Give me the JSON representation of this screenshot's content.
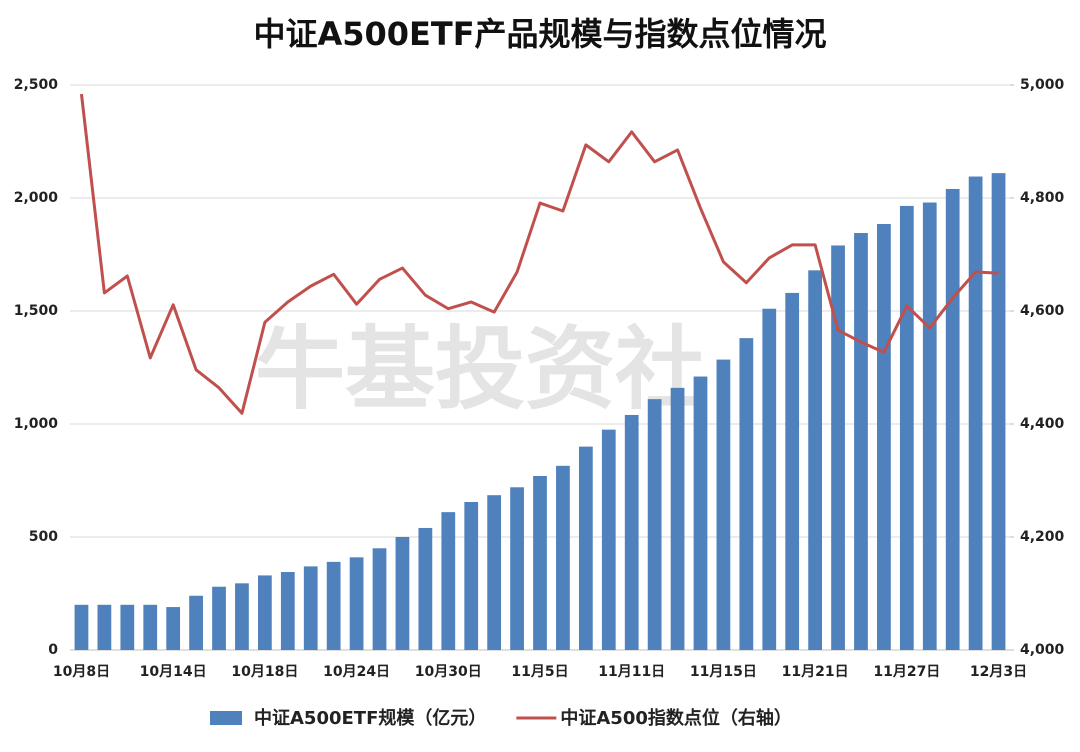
{
  "chart_data": {
    "type": "bar_line",
    "title": "中证A500ETF产品规模与指数点位情况",
    "watermark": "牛基投资社",
    "categories": [
      "10月8日",
      null,
      null,
      null,
      "10月14日",
      null,
      null,
      null,
      "10月18日",
      null,
      null,
      null,
      "10月24日",
      null,
      null,
      null,
      "10月30日",
      null,
      null,
      null,
      "11月5日",
      null,
      null,
      null,
      "11月11日",
      null,
      null,
      null,
      "11月15日",
      null,
      null,
      null,
      "11月21日",
      null,
      null,
      null,
      "11月27日",
      null,
      null,
      null,
      "12月3日"
    ],
    "series": [
      {
        "name": "中证A500ETF规模（亿元）",
        "type": "bar",
        "color": "#4f81bd",
        "values": [
          200,
          200,
          200,
          200,
          190,
          240,
          280,
          295,
          330,
          345,
          370,
          390,
          410,
          450,
          500,
          540,
          610,
          655,
          685,
          720,
          770,
          815,
          900,
          975,
          1040,
          1110,
          1160,
          1210,
          1285,
          1380,
          1510,
          1580,
          1680,
          1790,
          1845,
          1885,
          1965,
          1980,
          2040,
          2095,
          2110
        ]
      },
      {
        "name": "中证A500指数点位（右轴）",
        "type": "line",
        "axis": "y2",
        "color": "#c0504d",
        "values": [
          4984,
          4632,
          4662,
          4517,
          4611,
          4496,
          4464,
          4419,
          4580,
          4616,
          4644,
          4665,
          4612,
          4656,
          4676,
          4628,
          4604,
          4616,
          4598,
          4669,
          4791,
          4777,
          4894,
          4864,
          4917,
          4864,
          4885,
          4782,
          4687,
          4650,
          4694,
          4717,
          4717,
          4566,
          4545,
          4527,
          4609,
          4570,
          4623,
          4669,
          4667
        ]
      }
    ],
    "ylim": [
      0,
      2500
    ],
    "yticks": [
      0,
      500,
      {
        "value": 1000,
        "label": "1,000"
      },
      {
        "value": 1500,
        "label": "1,500"
      },
      {
        "value": 2000,
        "label": "2,000"
      },
      {
        "value": 2500,
        "label": "2,500"
      }
    ],
    "y2lim": [
      4000,
      5000
    ],
    "y2ticks": [
      {
        "value": 4000,
        "label": "4,000"
      },
      {
        "value": 4200,
        "label": "4,200"
      },
      {
        "value": 4400,
        "label": "4,400"
      },
      {
        "value": 4600,
        "label": "4,600"
      },
      {
        "value": 4800,
        "label": "4,800"
      },
      {
        "value": 5000,
        "label": "5,000"
      }
    ],
    "grid": true,
    "legend": "bottom"
  }
}
